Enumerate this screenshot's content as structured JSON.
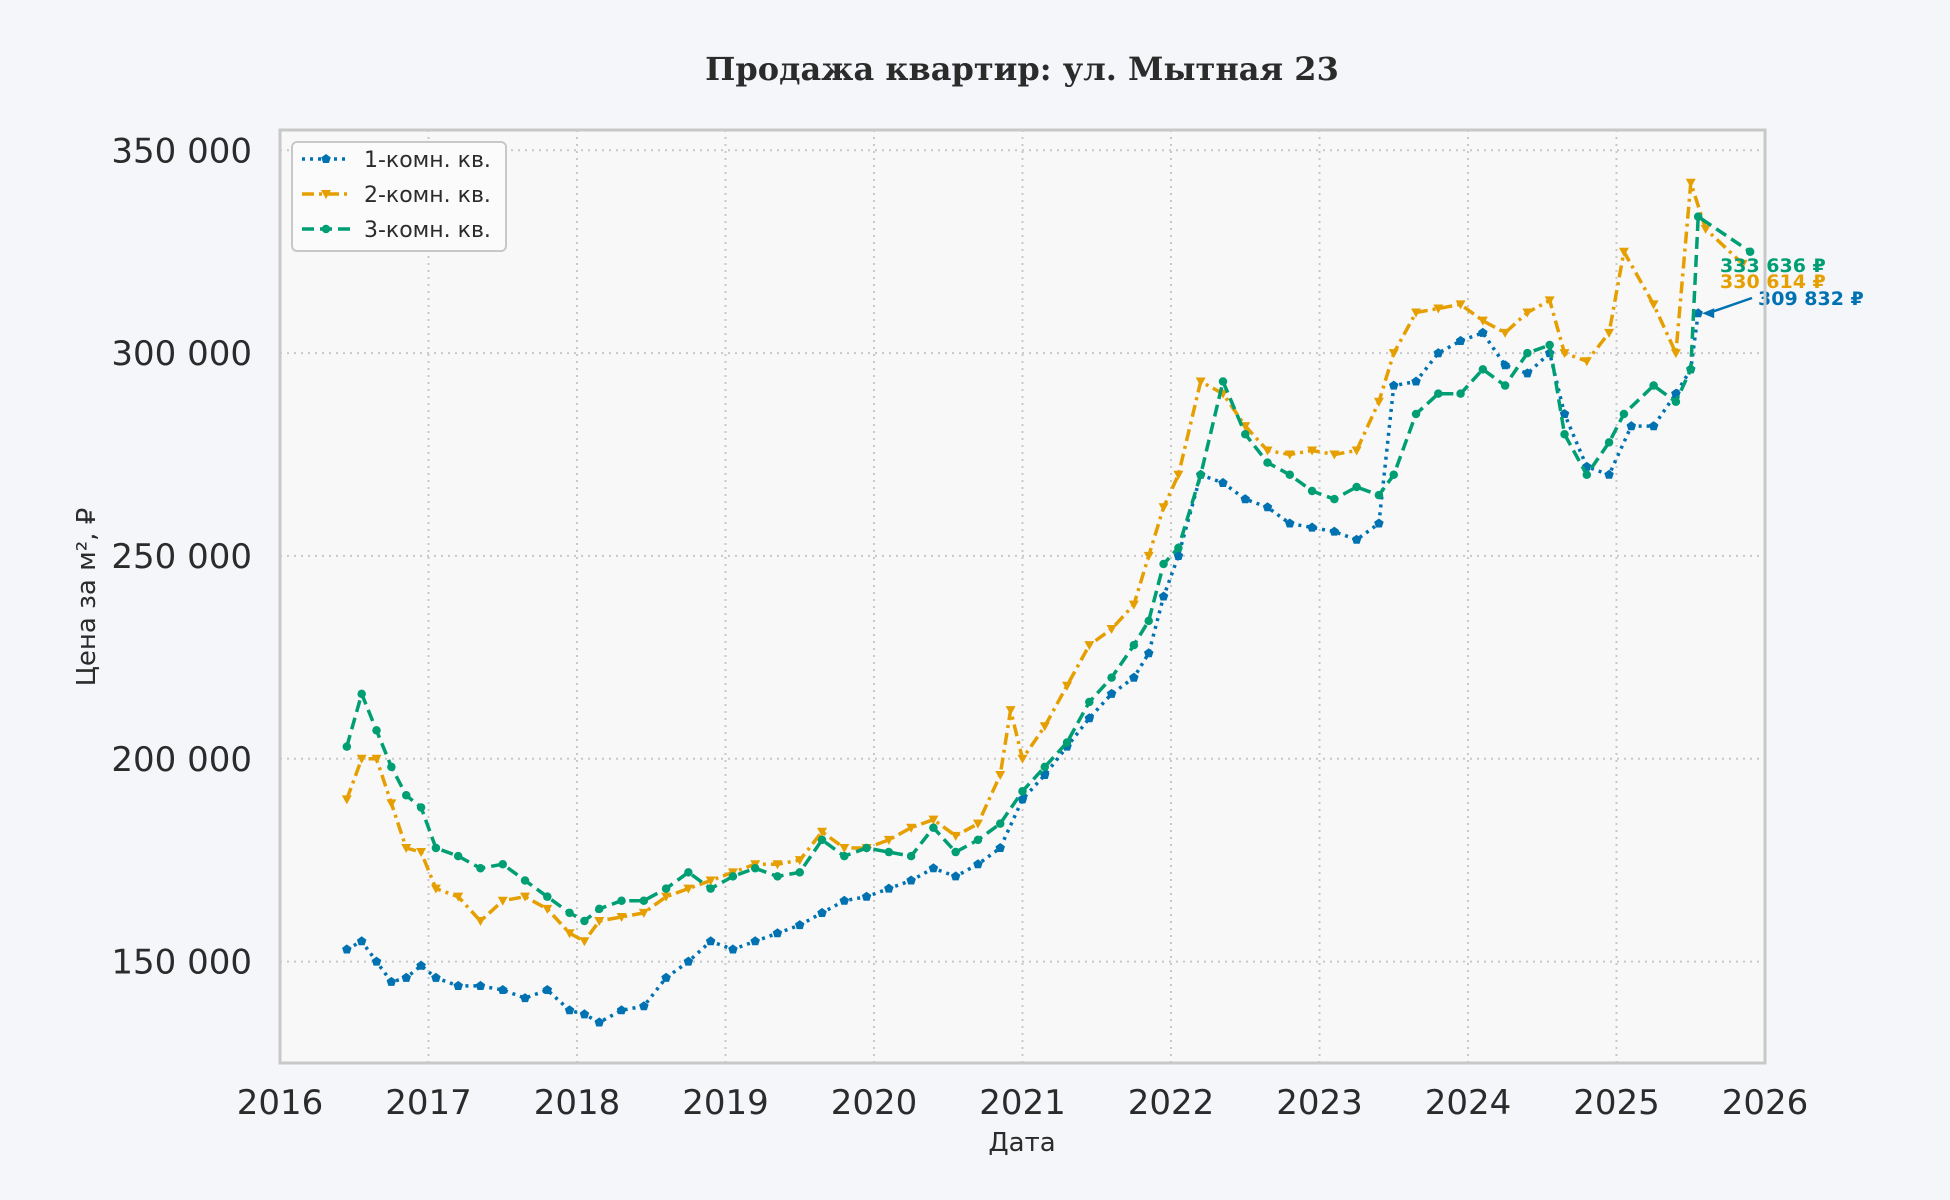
{
  "chart_data": {
    "type": "line",
    "title": "Продажа квартир: ул. Мытная 23",
    "xlabel": "Дата",
    "ylabel": "Цена за м², ₽",
    "xlim": [
      2016.0,
      2026.0
    ],
    "ylim": [
      125000,
      355000
    ],
    "x_ticks": [
      2016,
      2017,
      2018,
      2019,
      2020,
      2021,
      2022,
      2023,
      2024,
      2025,
      2026
    ],
    "x_tick_labels": [
      "2016",
      "2017",
      "2018",
      "2019",
      "2020",
      "2021",
      "2022",
      "2023",
      "2024",
      "2025",
      "2026"
    ],
    "y_ticks": [
      150000,
      200000,
      250000,
      300000,
      350000
    ],
    "y_tick_labels": [
      "150 000",
      "200 000",
      "250 000",
      "300 000",
      "350 000"
    ],
    "grid": true,
    "legend_position": "top-left",
    "series": [
      {
        "name": "1-комн. кв.",
        "color": "#0072b2",
        "line_style": "dotted",
        "marker": "pentagon",
        "x": [
          2016.45,
          2016.55,
          2016.65,
          2016.75,
          2016.85,
          2016.95,
          2017.05,
          2017.2,
          2017.35,
          2017.5,
          2017.65,
          2017.8,
          2017.95,
          2018.05,
          2018.15,
          2018.3,
          2018.45,
          2018.6,
          2018.75,
          2018.9,
          2019.05,
          2019.2,
          2019.35,
          2019.5,
          2019.65,
          2019.8,
          2019.95,
          2020.1,
          2020.25,
          2020.4,
          2020.55,
          2020.7,
          2020.85,
          2021.0,
          2021.15,
          2021.3,
          2021.45,
          2021.6,
          2021.75,
          2021.85,
          2021.95,
          2022.05,
          2022.2,
          2022.35,
          2022.5,
          2022.65,
          2022.8,
          2022.95,
          2023.1,
          2023.25,
          2023.4,
          2023.5,
          2023.65,
          2023.8,
          2023.95,
          2024.1,
          2024.25,
          2024.4,
          2024.55,
          2024.65,
          2024.8,
          2024.95,
          2025.1,
          2025.25,
          2025.4,
          2025.5,
          2025.55
        ],
        "values": [
          153000,
          155000,
          150000,
          145000,
          146000,
          149000,
          146000,
          144000,
          144000,
          143000,
          141000,
          143000,
          138000,
          137000,
          135000,
          138000,
          139000,
          146000,
          150000,
          155000,
          153000,
          155000,
          157000,
          159000,
          162000,
          165000,
          166000,
          168000,
          170000,
          173000,
          171000,
          174000,
          178000,
          190000,
          196000,
          203000,
          210000,
          216000,
          220000,
          226000,
          240000,
          250000,
          270000,
          268000,
          264000,
          262000,
          258000,
          257000,
          256000,
          254000,
          258000,
          292000,
          293000,
          300000,
          303000,
          305000,
          297000,
          295000,
          300000,
          285000,
          272000,
          270000,
          282000,
          282000,
          290000,
          296000,
          309832
        ],
        "annotation": "309 832 ₽"
      },
      {
        "name": "2-комн. кв.",
        "color": "#e69f00",
        "line_style": "dashdot",
        "marker": "triangle-down",
        "x": [
          2016.45,
          2016.55,
          2016.65,
          2016.75,
          2016.85,
          2016.95,
          2017.05,
          2017.2,
          2017.35,
          2017.5,
          2017.65,
          2017.8,
          2017.95,
          2018.05,
          2018.15,
          2018.3,
          2018.45,
          2018.6,
          2018.75,
          2018.9,
          2019.05,
          2019.2,
          2019.35,
          2019.5,
          2019.65,
          2019.8,
          2019.95,
          2020.1,
          2020.25,
          2020.4,
          2020.55,
          2020.7,
          2020.85,
          2020.92,
          2021.0,
          2021.15,
          2021.3,
          2021.45,
          2021.6,
          2021.75,
          2021.85,
          2021.95,
          2022.05,
          2022.2,
          2022.35,
          2022.5,
          2022.65,
          2022.8,
          2022.95,
          2023.1,
          2023.25,
          2023.4,
          2023.5,
          2023.65,
          2023.8,
          2023.95,
          2024.1,
          2024.25,
          2024.4,
          2024.55,
          2024.65,
          2024.8,
          2024.95,
          2025.05,
          2025.25,
          2025.4,
          2025.5,
          2025.6,
          2025.85
        ],
        "values": [
          190000,
          200000,
          200000,
          189000,
          178000,
          177000,
          168000,
          166000,
          160000,
          165000,
          166000,
          163000,
          157000,
          155000,
          160000,
          161000,
          162000,
          166000,
          168000,
          170000,
          172000,
          174000,
          174000,
          175000,
          182000,
          178000,
          178000,
          180000,
          183000,
          185000,
          181000,
          184000,
          196000,
          212000,
          200000,
          208000,
          218000,
          228000,
          232000,
          238000,
          250000,
          262000,
          270000,
          293000,
          290000,
          282000,
          276000,
          275000,
          276000,
          275000,
          276000,
          288000,
          300000,
          310000,
          311000,
          312000,
          308000,
          305000,
          310000,
          313000,
          300000,
          298000,
          305000,
          325000,
          312000,
          300000,
          342000,
          330614,
          322000
        ],
        "annotation": "330 614 ₽"
      },
      {
        "name": "3-комн. кв.",
        "color": "#009e73",
        "line_style": "dashed",
        "marker": "circle",
        "x": [
          2016.45,
          2016.55,
          2016.65,
          2016.75,
          2016.85,
          2016.95,
          2017.05,
          2017.2,
          2017.35,
          2017.5,
          2017.65,
          2017.8,
          2017.95,
          2018.05,
          2018.15,
          2018.3,
          2018.45,
          2018.6,
          2018.75,
          2018.9,
          2019.05,
          2019.2,
          2019.35,
          2019.5,
          2019.65,
          2019.8,
          2019.95,
          2020.1,
          2020.25,
          2020.4,
          2020.55,
          2020.7,
          2020.85,
          2021.0,
          2021.15,
          2021.3,
          2021.45,
          2021.6,
          2021.75,
          2021.85,
          2021.95,
          2022.05,
          2022.2,
          2022.35,
          2022.5,
          2022.65,
          2022.8,
          2022.95,
          2023.1,
          2023.25,
          2023.4,
          2023.5,
          2023.65,
          2023.8,
          2023.95,
          2024.1,
          2024.25,
          2024.4,
          2024.55,
          2024.65,
          2024.8,
          2024.95,
          2025.05,
          2025.25,
          2025.4,
          2025.5,
          2025.55,
          2025.9
        ],
        "values": [
          203000,
          216000,
          207000,
          198000,
          191000,
          188000,
          178000,
          176000,
          173000,
          174000,
          170000,
          166000,
          162000,
          160000,
          163000,
          165000,
          165000,
          168000,
          172000,
          168000,
          171000,
          173000,
          171000,
          172000,
          180000,
          176000,
          178000,
          177000,
          176000,
          183000,
          177000,
          180000,
          184000,
          192000,
          198000,
          204000,
          214000,
          220000,
          228000,
          234000,
          248000,
          252000,
          270000,
          293000,
          280000,
          273000,
          270000,
          266000,
          264000,
          267000,
          265000,
          270000,
          285000,
          290000,
          290000,
          296000,
          292000,
          300000,
          302000,
          280000,
          270000,
          278000,
          285000,
          292000,
          288000,
          296000,
          333636,
          325000
        ],
        "annotation": "333 636 ₽"
      }
    ]
  }
}
